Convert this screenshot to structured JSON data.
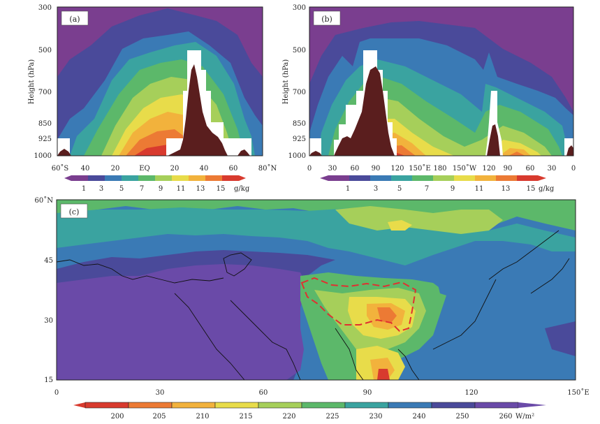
{
  "chart_data": [
    {
      "type": "heatmap",
      "panel_label": "(a)",
      "ylabel": "Height (hPa)",
      "y_ticks": [
        "300",
        "500",
        "700",
        "850",
        "925",
        "1000"
      ],
      "x_ticks": [
        "60˚S",
        "40",
        "20",
        "EQ",
        "20",
        "40",
        "60",
        "80˚N"
      ],
      "colorbar_ticks": [
        "1",
        "3",
        "5",
        "7",
        "9",
        "11",
        "13",
        "15"
      ],
      "colorbar_unit": "g/kg",
      "levels": [
        1,
        3,
        5,
        7,
        9,
        11,
        13,
        15
      ],
      "colors": [
        "#7a3e8f",
        "#4a4a9a",
        "#3a7ab5",
        "#3aa3a0",
        "#5cb86a",
        "#a6cf5a",
        "#e8dc4a",
        "#f2b23c",
        "#ec7a34",
        "#d83a2e"
      ],
      "terrain_color": "#5a1e1e"
    },
    {
      "type": "heatmap",
      "panel_label": "(b)",
      "ylabel": "Height (hPa)",
      "y_ticks": [
        "300",
        "500",
        "700",
        "850",
        "925",
        "1000"
      ],
      "x_ticks": [
        "0",
        "30",
        "60",
        "90",
        "120",
        "150˚E",
        "180",
        "150˚W",
        "120",
        "90",
        "60",
        "30",
        "0"
      ],
      "colorbar_ticks": [
        "1",
        "3",
        "5",
        "7",
        "9",
        "11",
        "13",
        "15"
      ],
      "colorbar_unit": "g/kg",
      "levels": [
        1,
        3,
        5,
        7,
        9,
        11,
        13,
        15
      ]
    },
    {
      "type": "heatmap",
      "panel_label": "(c)",
      "y_ticks": [
        "60˚N",
        "45",
        "30",
        "15"
      ],
      "x_ticks": [
        "0",
        "30",
        "60",
        "90",
        "120",
        "150˚E"
      ],
      "colorbar_ticks": [
        "200",
        "205",
        "210",
        "215",
        "220",
        "225",
        "230",
        "240",
        "250",
        "260"
      ],
      "colorbar_unit": "W/m²",
      "levels": [
        200,
        205,
        210,
        215,
        220,
        225,
        230,
        240,
        250,
        260
      ],
      "colors": [
        "#d83a2e",
        "#ec7a34",
        "#f2b23c",
        "#e8dc4a",
        "#a6cf5a",
        "#5cb86a",
        "#3aa3a0",
        "#3a7ab5",
        "#4a4a9a",
        "#6a4aa8"
      ],
      "highlight_contour_color": "#e03030"
    }
  ]
}
